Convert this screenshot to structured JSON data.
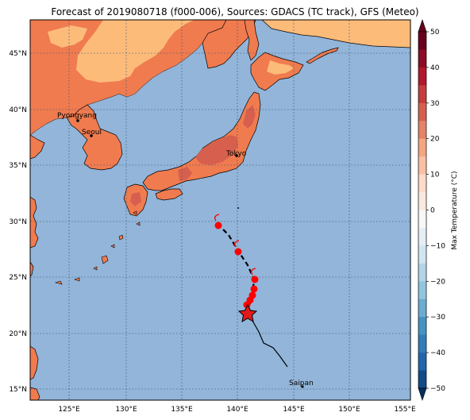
{
  "title": "Forecast of 2019080718 (f000-006), Sources: GDACS (TC track), GFS (Meteo)",
  "colorbar": {
    "label": "Max Temperature (°C)",
    "ticks": [
      "50",
      "40",
      "30",
      "20",
      "10",
      "0",
      "−10",
      "−20",
      "−30",
      "−40",
      "−50"
    ],
    "colors": [
      "#67001f",
      "#b2182b",
      "#d6604d",
      "#f4a582",
      "#fddbc7",
      "#f7f7f7",
      "#d1e5f0",
      "#92c5de",
      "#4393c3",
      "#2166ac",
      "#053061"
    ]
  },
  "axes": {
    "lon_ticks": [
      "125°E",
      "130°E",
      "135°E",
      "140°E",
      "145°E",
      "150°E",
      "155°E"
    ],
    "lat_ticks": [
      "45°N",
      "40°N",
      "35°N",
      "30°N",
      "25°N",
      "20°N",
      "15°N"
    ]
  },
  "cities": [
    {
      "name": "Pyongyang"
    },
    {
      "name": "Seoul"
    },
    {
      "name": "Tokyo"
    },
    {
      "name": "Saipan"
    }
  ],
  "colors": {
    "ocean": "#92b5d9",
    "land_hot": "#f07b4f",
    "land_warm": "#fdbb7a",
    "land_very_hot": "#d6604d",
    "track": "#000000",
    "storm_marker": "#ff0000"
  }
}
